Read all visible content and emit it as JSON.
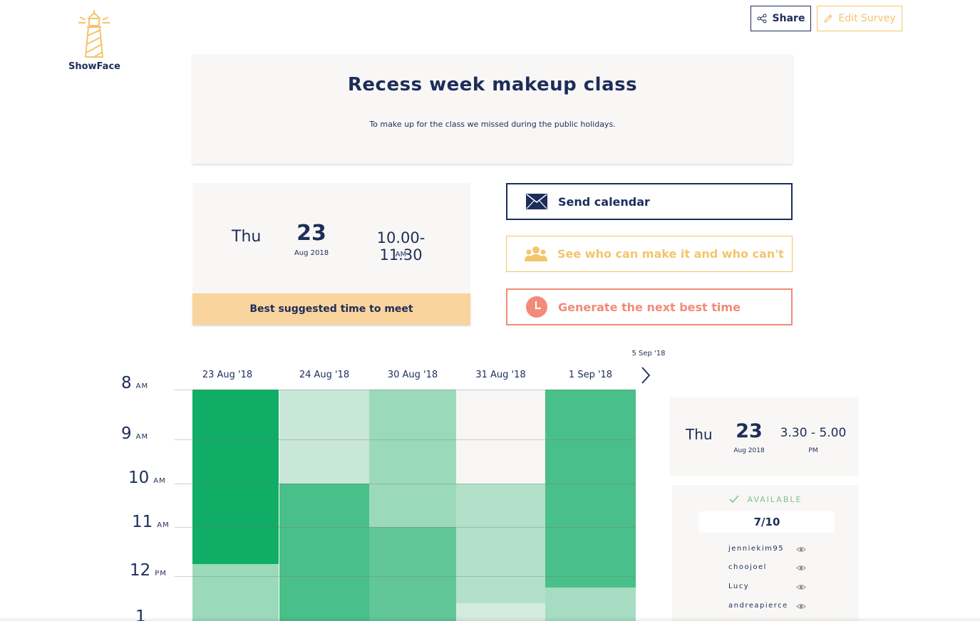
{
  "app": {
    "name": "ShowFace",
    "share_label": "Share",
    "edit_label": "Edit Survey",
    "colors": {
      "navy": "#1d2d5a",
      "gold": "#f5c46b",
      "coral": "#f28a78",
      "green": "#0fad65"
    }
  },
  "survey": {
    "title": "Recess week makeup class",
    "description": "To make up for the class we missed during the public holidays."
  },
  "best_time": {
    "day": "Thu",
    "date": "23",
    "month_year": "Aug 2018",
    "time": "10.00-11.30",
    "ampm": "AM",
    "banner": "Best suggested time to meet"
  },
  "actions": {
    "send_calendar": "Send calendar",
    "see_who": "See who can make it and who can't",
    "generate_next": "Generate the next best time"
  },
  "heatmap": {
    "next_date": "5 Sep '18",
    "columns": [
      "23 Aug '18",
      "24 Aug '18",
      "30 Aug '18",
      "31 Aug '18",
      "1 Sep '18"
    ],
    "hours": [
      {
        "num": "8",
        "ap": "AM"
      },
      {
        "num": "9",
        "ap": "AM"
      },
      {
        "num": "10",
        "ap": "AM"
      },
      {
        "num": "11",
        "ap": "AM"
      },
      {
        "num": "12",
        "ap": "PM"
      },
      {
        "num": "1",
        "ap": ""
      }
    ],
    "availability_levels": [
      [
        {
          "start": 8.0,
          "end": 11.75,
          "level": 1.0
        },
        {
          "start": 11.75,
          "end": 13.2,
          "level": 0.4
        }
      ],
      [
        {
          "start": 8.0,
          "end": 10.0,
          "level": 0.2
        },
        {
          "start": 10.0,
          "end": 13.2,
          "level": 0.75
        }
      ],
      [
        {
          "start": 8.0,
          "end": 11.0,
          "level": 0.4
        },
        {
          "start": 11.0,
          "end": 13.2,
          "level": 0.65
        }
      ],
      [
        {
          "start": 8.0,
          "end": 10.0,
          "level": 0.0
        },
        {
          "start": 10.0,
          "end": 12.6,
          "level": 0.3
        },
        {
          "start": 12.6,
          "end": 13.2,
          "level": 0.15
        }
      ],
      [
        {
          "start": 8.0,
          "end": 12.25,
          "level": 0.75
        },
        {
          "start": 12.25,
          "end": 13.2,
          "level": 0.35
        }
      ]
    ]
  },
  "detail": {
    "day": "Thu",
    "date": "23",
    "month_year": "Aug 2018",
    "time": "3.30 - 5.00",
    "ampm": "PM",
    "available_label": "AVAILABLE",
    "available_count": "7/10",
    "people": [
      "jenniekim95",
      "choojoel",
      "Lucy",
      "andreapierce"
    ]
  }
}
